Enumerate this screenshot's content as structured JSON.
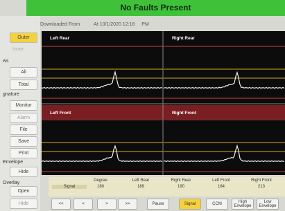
{
  "header": {
    "status": "No Faults Present",
    "downloaded": "Downloaded From",
    "timestamp": "At 10/1/2020 12:18",
    "ampm": "PM"
  },
  "sidebar": {
    "outer": "Outer",
    "inner": "Inner",
    "views": "ws",
    "all": "All",
    "total": "Total",
    "signature": "gnature",
    "monitor": "Monitor",
    "alarm": "Alarm",
    "file": "File",
    "save": "Save",
    "print": "Print",
    "envelope": "Envelope",
    "envelope_hide": "Hide",
    "overlay": "Overlay",
    "open": "Open",
    "overlay_hide": "Hide"
  },
  "panels": [
    "Left Rear",
    "Right Rear",
    "Left Front",
    "Right Front"
  ],
  "table": {
    "headers": [
      "Degree",
      "Left Rear",
      "Right Rear",
      "Left Front",
      "Right Front"
    ],
    "row_label": "Signal",
    "values": [
      180,
      189,
      190,
      184,
      213
    ]
  },
  "buttons": [
    "<<",
    "<",
    ">",
    ">>",
    "Pause",
    "Signal",
    "CCM",
    "High Envelope",
    "Low Envelope"
  ]
}
